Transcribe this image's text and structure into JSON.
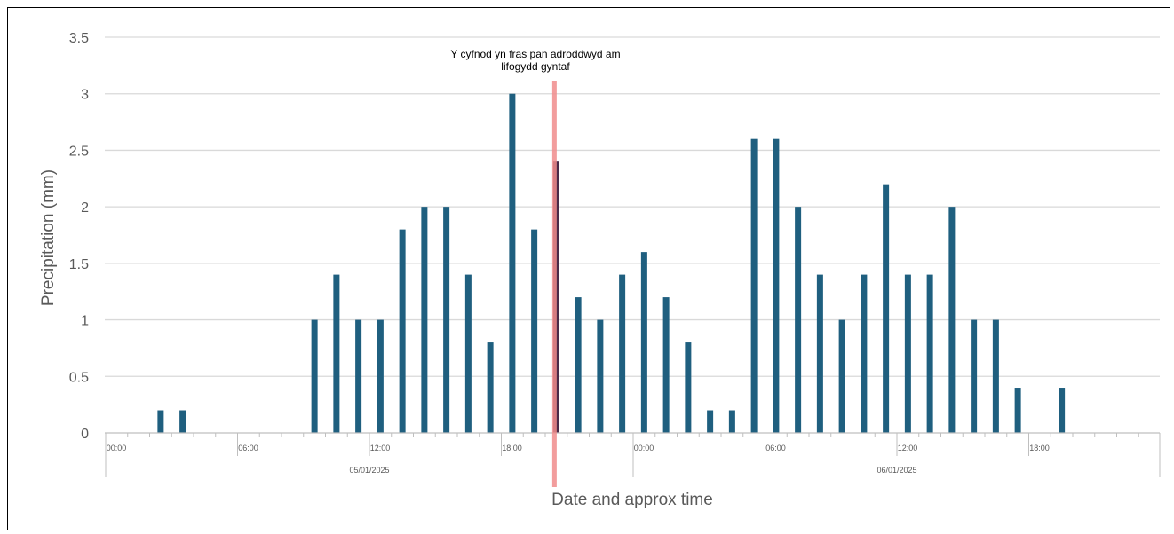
{
  "chart_data": {
    "type": "bar",
    "title": "",
    "xlabel": "Date and approx time",
    "ylabel": "Precipitation (mm)",
    "ylim": [
      0,
      3.5
    ],
    "yticks": [
      "0",
      "0.5",
      "1",
      "1.5",
      "2",
      "2.5",
      "3",
      "3.5"
    ],
    "grid": true,
    "bar_color": "#1f5f7f",
    "marker_color": "#f08c8c",
    "highlight_bar_color": "#4a2a48",
    "x_time_labels": [
      "00:00",
      "06:00",
      "12:00",
      "18:00",
      "00:00",
      "06:00",
      "12:00",
      "18:00"
    ],
    "x_date_labels": [
      "05/01/2025",
      "06/01/2025"
    ],
    "annotation": {
      "lines": [
        "Y cyfnod yn fras pan adroddwyd am",
        "lifogydd gyntaf"
      ],
      "hour": 19
    },
    "series": [
      {
        "values": [
          0,
          0.2,
          0.2,
          0,
          0,
          0,
          0,
          0,
          1,
          1.4,
          1,
          1,
          1.8,
          2,
          2,
          1.4,
          0.8,
          3,
          1.8,
          2.4,
          1.2,
          1,
          1.4,
          1.6,
          1.2,
          0.8,
          0.2,
          0.2,
          2.6,
          2.6,
          2,
          1.4,
          1,
          1.4,
          2.2,
          1.4,
          1.4,
          2,
          1,
          1,
          0.4,
          0,
          0.4,
          0,
          0,
          0,
          0,
          0
        ]
      }
    ]
  }
}
